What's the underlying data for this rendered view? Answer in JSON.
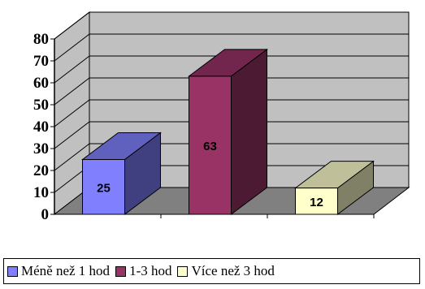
{
  "chart_data": {
    "type": "bar",
    "categories": [
      "Méně než 1 hod",
      "1-3 hod",
      "Více než 3 hod"
    ],
    "values": [
      25,
      63,
      12
    ],
    "data_labels": [
      "25",
      "63",
      "12"
    ],
    "ylim": [
      0,
      80
    ],
    "yticks": [
      "0",
      "10",
      "20",
      "30",
      "40",
      "50",
      "60",
      "70",
      "80"
    ],
    "grid": true,
    "three_d": true,
    "legend_position": "bottom",
    "colors": {
      "bars": [
        "#8080ff",
        "#993366",
        "#ffffcc"
      ],
      "wall": "#c0c0c0",
      "floor": "#808080"
    }
  },
  "legend": {
    "items": [
      {
        "label": "Méně než 1 hod",
        "color": "#8080ff"
      },
      {
        "label": "1-3 hod",
        "color": "#993366"
      },
      {
        "label": "Více než 3 hod",
        "color": "#ffffcc"
      }
    ]
  }
}
